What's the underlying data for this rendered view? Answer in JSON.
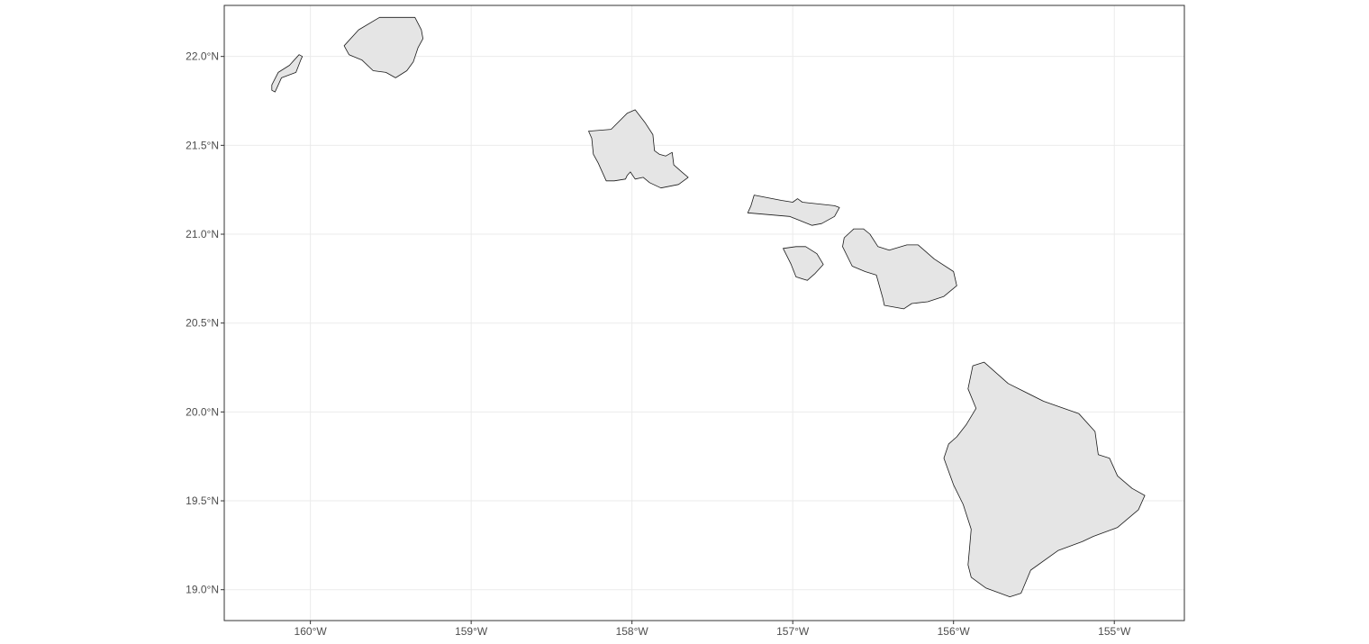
{
  "map": {
    "type": "map",
    "lon_range": [
      -160.5357,
      -154.5643
    ],
    "lat_range": [
      18.8262,
      22.2872
    ],
    "lon_ticks": [
      {
        "value": -160,
        "label": "160°W"
      },
      {
        "value": -159,
        "label": "159°W"
      },
      {
        "value": -158,
        "label": "158°W"
      },
      {
        "value": -157,
        "label": "157°W"
      },
      {
        "value": -156,
        "label": "156°W"
      },
      {
        "value": -155,
        "label": "155°W"
      }
    ],
    "lat_ticks": [
      {
        "value": 19.0,
        "label": "19.0°N"
      },
      {
        "value": 19.5,
        "label": "19.5°N"
      },
      {
        "value": 20.0,
        "label": "20.0°N"
      },
      {
        "value": 20.5,
        "label": "20.5°N"
      },
      {
        "value": 21.0,
        "label": "21.0°N"
      },
      {
        "value": 21.5,
        "label": "21.5°N"
      },
      {
        "value": 22.0,
        "label": "22.0°N"
      }
    ],
    "grid": true,
    "colors": {
      "land": "#e5e5e5",
      "outline": "#1a1a1a",
      "grid": "#ebebeb",
      "background": "#ffffff"
    },
    "islands": [
      {
        "name": "niihau",
        "coords": [
          [
            -160.24,
            21.81
          ],
          [
            -160.22,
            21.8
          ],
          [
            -160.18,
            21.88
          ],
          [
            -160.09,
            21.91
          ],
          [
            -160.06,
            21.98
          ],
          [
            -160.05,
            22.0
          ],
          [
            -160.07,
            22.01
          ],
          [
            -160.13,
            21.95
          ],
          [
            -160.2,
            21.91
          ],
          [
            -160.24,
            21.84
          ]
        ]
      },
      {
        "name": "kauai",
        "coords": [
          [
            -159.79,
            22.06
          ],
          [
            -159.76,
            22.01
          ],
          [
            -159.68,
            21.98
          ],
          [
            -159.61,
            21.92
          ],
          [
            -159.53,
            21.91
          ],
          [
            -159.47,
            21.88
          ],
          [
            -159.4,
            21.92
          ],
          [
            -159.36,
            21.97
          ],
          [
            -159.33,
            22.05
          ],
          [
            -159.3,
            22.1
          ],
          [
            -159.31,
            22.15
          ],
          [
            -159.35,
            22.22
          ],
          [
            -159.57,
            22.22
          ],
          [
            -159.7,
            22.15
          ]
        ]
      },
      {
        "name": "oahu",
        "coords": [
          [
            -158.27,
            21.58
          ],
          [
            -158.13,
            21.59
          ],
          [
            -158.03,
            21.68
          ],
          [
            -157.98,
            21.7
          ],
          [
            -157.92,
            21.63
          ],
          [
            -157.87,
            21.56
          ],
          [
            -157.86,
            21.47
          ],
          [
            -157.83,
            21.45
          ],
          [
            -157.79,
            21.44
          ],
          [
            -157.75,
            21.46
          ],
          [
            -157.74,
            21.39
          ],
          [
            -157.69,
            21.35
          ],
          [
            -157.65,
            21.32
          ],
          [
            -157.71,
            21.28
          ],
          [
            -157.82,
            21.26
          ],
          [
            -157.89,
            21.29
          ],
          [
            -157.93,
            21.32
          ],
          [
            -157.98,
            21.31
          ],
          [
            -158.01,
            21.35
          ],
          [
            -158.03,
            21.33
          ],
          [
            -158.04,
            21.31
          ],
          [
            -158.11,
            21.3
          ],
          [
            -158.16,
            21.3
          ],
          [
            -158.21,
            21.4
          ],
          [
            -158.24,
            21.45
          ],
          [
            -158.25,
            21.54
          ]
        ]
      },
      {
        "name": "molokai",
        "coords": [
          [
            -157.28,
            21.12
          ],
          [
            -157.26,
            21.16
          ],
          [
            -157.24,
            21.22
          ],
          [
            -157.07,
            21.19
          ],
          [
            -157.0,
            21.18
          ],
          [
            -156.97,
            21.2
          ],
          [
            -156.94,
            21.18
          ],
          [
            -156.74,
            21.16
          ],
          [
            -156.71,
            21.15
          ],
          [
            -156.74,
            21.1
          ],
          [
            -156.82,
            21.06
          ],
          [
            -156.88,
            21.05
          ],
          [
            -157.02,
            21.1
          ]
        ]
      },
      {
        "name": "lanai",
        "coords": [
          [
            -157.06,
            20.92
          ],
          [
            -157.01,
            20.83
          ],
          [
            -156.98,
            20.76
          ],
          [
            -156.91,
            20.74
          ],
          [
            -156.86,
            20.78
          ],
          [
            -156.81,
            20.83
          ],
          [
            -156.85,
            20.89
          ],
          [
            -156.92,
            20.93
          ],
          [
            -156.98,
            20.93
          ]
        ]
      },
      {
        "name": "maui",
        "coords": [
          [
            -156.69,
            20.93
          ],
          [
            -156.68,
            20.98
          ],
          [
            -156.62,
            21.03
          ],
          [
            -156.56,
            21.03
          ],
          [
            -156.52,
            21.0
          ],
          [
            -156.47,
            20.93
          ],
          [
            -156.4,
            20.91
          ],
          [
            -156.29,
            20.94
          ],
          [
            -156.22,
            20.94
          ],
          [
            -156.12,
            20.86
          ],
          [
            -156.0,
            20.79
          ],
          [
            -155.98,
            20.71
          ],
          [
            -156.06,
            20.65
          ],
          [
            -156.16,
            20.62
          ],
          [
            -156.26,
            20.61
          ],
          [
            -156.31,
            20.58
          ],
          [
            -156.43,
            20.6
          ],
          [
            -156.44,
            20.64
          ],
          [
            -156.48,
            20.77
          ],
          [
            -156.55,
            20.79
          ],
          [
            -156.63,
            20.82
          ]
        ]
      },
      {
        "name": "hawaii",
        "coords": [
          [
            -155.88,
            20.26
          ],
          [
            -155.81,
            20.28
          ],
          [
            -155.66,
            20.16
          ],
          [
            -155.44,
            20.06
          ],
          [
            -155.22,
            19.99
          ],
          [
            -155.12,
            19.89
          ],
          [
            -155.1,
            19.76
          ],
          [
            -155.03,
            19.74
          ],
          [
            -154.98,
            19.64
          ],
          [
            -154.89,
            19.57
          ],
          [
            -154.81,
            19.53
          ],
          [
            -154.85,
            19.45
          ],
          [
            -154.98,
            19.35
          ],
          [
            -155.13,
            19.3
          ],
          [
            -155.2,
            19.27
          ],
          [
            -155.35,
            19.22
          ],
          [
            -155.52,
            19.11
          ],
          [
            -155.58,
            18.98
          ],
          [
            -155.65,
            18.96
          ],
          [
            -155.68,
            18.97
          ],
          [
            -155.8,
            19.01
          ],
          [
            -155.89,
            19.07
          ],
          [
            -155.91,
            19.14
          ],
          [
            -155.9,
            19.24
          ],
          [
            -155.89,
            19.34
          ],
          [
            -155.94,
            19.48
          ],
          [
            -156.0,
            19.59
          ],
          [
            -156.06,
            19.74
          ],
          [
            -156.03,
            19.82
          ],
          [
            -155.98,
            19.86
          ],
          [
            -155.92,
            19.93
          ],
          [
            -155.86,
            20.02
          ],
          [
            -155.91,
            20.13
          ]
        ]
      }
    ]
  }
}
